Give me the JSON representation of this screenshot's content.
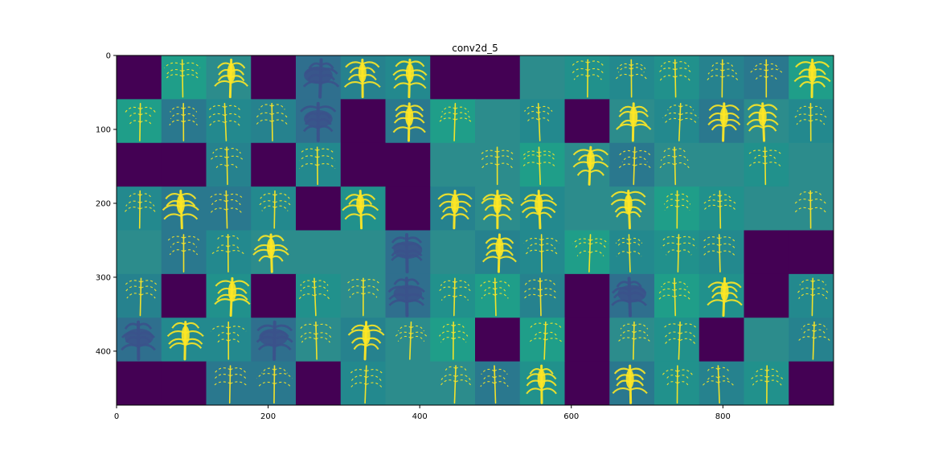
{
  "chart_data": {
    "type": "heatmap",
    "title": "conv2d_5",
    "xlabel": "",
    "ylabel": "",
    "colormap": "viridis",
    "grid": false,
    "grid_rows": 8,
    "grid_cols": 16,
    "image_size": [
      946,
      473
    ],
    "xlim": [
      0,
      946
    ],
    "ylim": [
      473,
      0
    ],
    "x_ticks": [
      0,
      200,
      400,
      600,
      800
    ],
    "y_ticks": [
      0,
      100,
      200,
      300,
      400
    ],
    "x_tick_labels": [
      "0",
      "200",
      "400",
      "600",
      "800"
    ],
    "y_tick_labels": [
      "0",
      "100",
      "200",
      "300",
      "400"
    ],
    "tile_types": [
      [
        "dead",
        "lines",
        "bright",
        "dead",
        "dark-plant",
        "bright",
        "bright",
        "dead",
        "dead",
        "flat",
        "lines",
        "lines",
        "lines",
        "lines",
        "lines",
        "bright"
      ],
      [
        "lines",
        "lines",
        "lines",
        "lines",
        "dark-plant",
        "dead",
        "bright",
        "lines",
        "flat",
        "lines",
        "dead",
        "bright",
        "lines",
        "bright",
        "bright",
        "lines"
      ],
      [
        "dead",
        "dead",
        "lines",
        "dead",
        "lines",
        "dead",
        "dead",
        "flat",
        "lines",
        "lines",
        "bright",
        "lines",
        "lines",
        "flat",
        "lines",
        "flat"
      ],
      [
        "lines",
        "bright",
        "lines",
        "lines",
        "dead",
        "bright",
        "dead",
        "bright",
        "bright",
        "bright",
        "flat",
        "bright",
        "lines",
        "lines",
        "flat",
        "lines"
      ],
      [
        "flat",
        "lines",
        "lines",
        "bright",
        "flat",
        "flat",
        "dark-plant",
        "flat",
        "bright",
        "lines",
        "lines",
        "lines",
        "lines",
        "lines",
        "dead",
        "dead"
      ],
      [
        "lines",
        "dead",
        "bright",
        "dead",
        "lines",
        "lines",
        "dark-plant",
        "lines",
        "lines",
        "lines",
        "dead",
        "dark-plant",
        "lines",
        "bright",
        "dead",
        "lines"
      ],
      [
        "dark-plant",
        "bright",
        "lines",
        "dark-plant",
        "lines",
        "bright",
        "lines",
        "lines",
        "dead",
        "lines",
        "dead",
        "lines",
        "lines",
        "dead",
        "flat",
        "lines"
      ],
      [
        "dead",
        "dead",
        "lines",
        "lines",
        "dead",
        "lines",
        "flat",
        "lines",
        "lines",
        "bright",
        "dead",
        "bright",
        "lines",
        "lines",
        "lines",
        "dead"
      ]
    ],
    "colors": {
      "dead": "#440154",
      "flat": "#2c8c8c",
      "base": "#26828e",
      "dark": "#3b528b",
      "bright": "#fde725",
      "mid": "#5ec962"
    }
  }
}
